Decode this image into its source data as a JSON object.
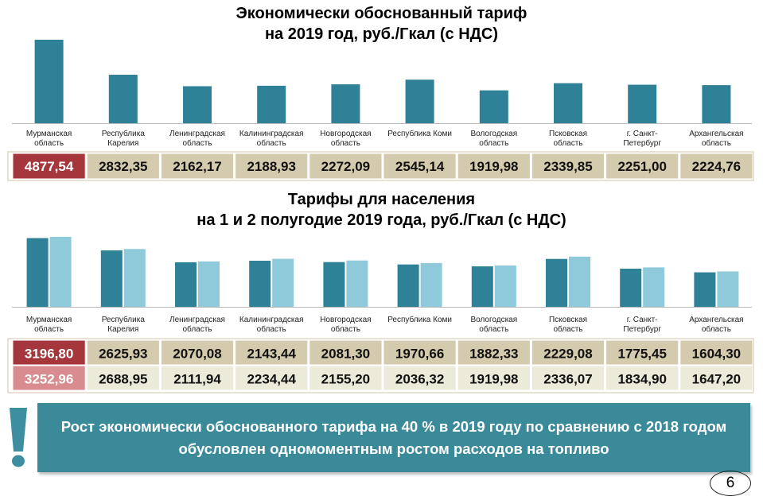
{
  "titles": {
    "chart1_line1": "Экономически обоснованный тариф",
    "chart1_line2": "на 2019 год, руб./Гкал (с НДС)",
    "chart2_line1": "Тарифы для населения",
    "chart2_line2": "на 1 и 2 полугодие 2019 года, руб./Гкал (с НДС)"
  },
  "colors": {
    "series_dark": "#2e8196",
    "series_light": "#8fcada",
    "highlight_red": "#a5363c",
    "highlight_pink": "#d98c8f",
    "cell_tan": "#d4cbae",
    "cell_light": "#ecead8",
    "callout_bg": "#3a8a9a",
    "exclamation": "#3d8fa0"
  },
  "chart_data": [
    {
      "type": "bar",
      "categories": [
        [
          "Мурманская",
          "область"
        ],
        [
          "Республика",
          "Карелия"
        ],
        [
          "Ленинградская",
          "область"
        ],
        [
          "Калининградская",
          "область"
        ],
        [
          "Новгородская",
          "область"
        ],
        [
          "Республика Коми"
        ],
        [
          "Вологодская",
          "область"
        ],
        [
          "Псковская",
          "область"
        ],
        [
          "г. Санкт-",
          "Петербург"
        ],
        [
          "Архангельская",
          "область"
        ]
      ],
      "values": [
        4877.54,
        2832.35,
        2162.17,
        2188.93,
        2272.09,
        2545.14,
        1919.98,
        2339.85,
        2251.0,
        2224.76
      ],
      "value_labels": [
        "4877,54",
        "2832,35",
        "2162,17",
        "2188,93",
        "2272,09",
        "2545,14",
        "1919,98",
        "2339,85",
        "2251,00",
        "2224,76"
      ]
    },
    {
      "type": "bar",
      "categories": [
        [
          "Мурманская",
          "область"
        ],
        [
          "Республика",
          "Карелия"
        ],
        [
          "Ленинградская",
          "область"
        ],
        [
          "Калининградская",
          "область"
        ],
        [
          "Новгородская",
          "область"
        ],
        [
          "Республика Коми"
        ],
        [
          "Вологодская",
          "область"
        ],
        [
          "Псковская",
          "область"
        ],
        [
          "г. Санкт-",
          "Петербург"
        ],
        [
          "Архангельская",
          "область"
        ]
      ],
      "series": [
        {
          "values": [
            3196.8,
            2625.93,
            2070.08,
            2143.44,
            2081.3,
            1970.66,
            1882.33,
            2229.08,
            1775.45,
            1604.3
          ],
          "value_labels": [
            "3196,80",
            "2625,93",
            "2070,08",
            "2143,44",
            "2081,30",
            "1970,66",
            "1882,33",
            "2229,08",
            "1775,45",
            "1604,30"
          ]
        },
        {
          "values": [
            3252.96,
            2688.95,
            2111.94,
            2234.44,
            2155.2,
            2036.32,
            1919.98,
            2336.07,
            1834.9,
            1647.2
          ],
          "value_labels": [
            "3252,96",
            "2688,95",
            "2111,94",
            "2234,44",
            "2155,20",
            "2036,32",
            "1919,98",
            "2336,07",
            "1834,90",
            "1647,20"
          ]
        }
      ]
    }
  ],
  "callout": {
    "text": "Рост экономически обоснованного тарифа на 40 % в 2019 году по сравнению с 2018 годом обусловлен одномоментным ростом расходов на топливо",
    "icon": "exclamation-icon"
  },
  "page_number": "6"
}
